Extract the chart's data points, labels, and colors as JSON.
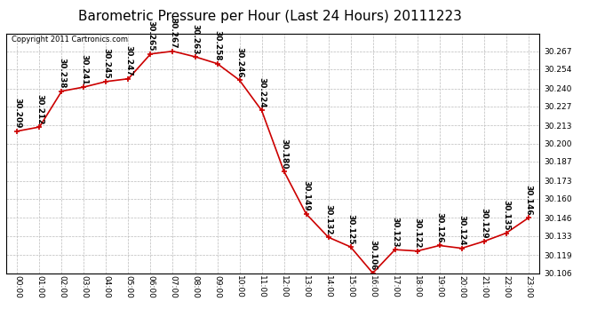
{
  "title": "Barometric Pressure per Hour (Last 24 Hours) 20111223",
  "copyright": "Copyright 2011 Cartronics.com",
  "hours": [
    "00:00",
    "01:00",
    "02:00",
    "03:00",
    "04:00",
    "05:00",
    "06:00",
    "07:00",
    "08:00",
    "09:00",
    "10:00",
    "11:00",
    "12:00",
    "13:00",
    "14:00",
    "15:00",
    "16:00",
    "17:00",
    "18:00",
    "19:00",
    "20:00",
    "21:00",
    "22:00",
    "23:00"
  ],
  "values": [
    30.209,
    30.212,
    30.238,
    30.241,
    30.245,
    30.247,
    30.265,
    30.267,
    30.263,
    30.258,
    30.246,
    30.224,
    30.18,
    30.149,
    30.132,
    30.125,
    30.106,
    30.123,
    30.122,
    30.126,
    30.124,
    30.129,
    30.135,
    30.146
  ],
  "ylim_min": 30.106,
  "ylim_max": 30.28,
  "yticks": [
    30.106,
    30.119,
    30.133,
    30.146,
    30.16,
    30.173,
    30.187,
    30.2,
    30.213,
    30.227,
    30.24,
    30.254,
    30.267
  ],
  "line_color": "#cc0000",
  "marker_color": "#cc0000",
  "bg_color": "#ffffff",
  "grid_color": "#bbbbbb",
  "title_fontsize": 11,
  "label_fontsize": 6.5,
  "annotation_fontsize": 6.5,
  "copyright_fontsize": 6.0
}
